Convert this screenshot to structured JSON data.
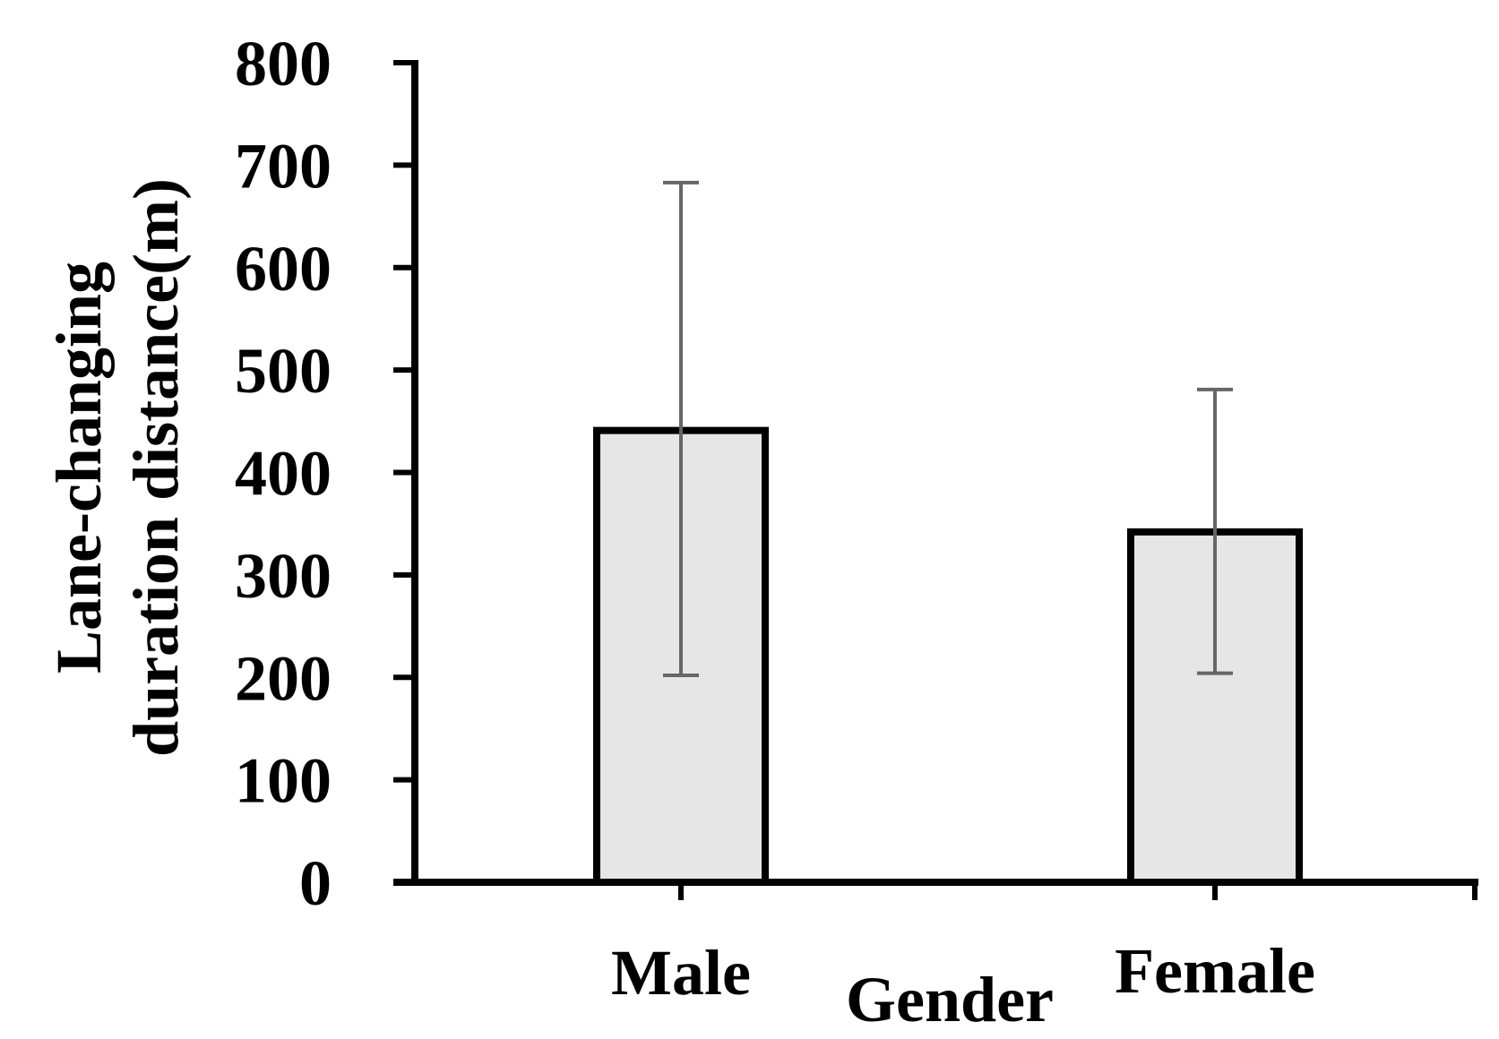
{
  "chart_data": {
    "type": "bar",
    "categories": [
      "Male",
      "Female"
    ],
    "values": [
      441,
      342
    ],
    "error_low": [
      202,
      204
    ],
    "error_high": [
      683,
      481
    ],
    "xlabel": "Gender",
    "ylabel_lines": [
      "Lane-changing",
      "duration distance(m)"
    ],
    "ylim": [
      0,
      800
    ],
    "yticks": [
      "0",
      "100",
      "200",
      "300",
      "400",
      "500",
      "600",
      "700",
      "800"
    ],
    "grid": false,
    "colors": {
      "bar_fill": "#e6e6e6",
      "bar_stroke": "#000000",
      "error_bar": "#666666",
      "axis": "#000000"
    }
  }
}
